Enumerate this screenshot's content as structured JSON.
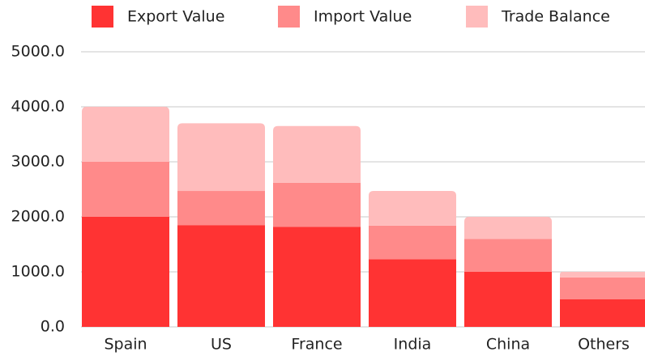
{
  "chart_data": {
    "type": "stacked_bar",
    "categories": [
      "Spain",
      "US",
      "France",
      "India",
      "China",
      "Others"
    ],
    "series": [
      {
        "name": "Export Value",
        "color": "#ff3333",
        "values": [
          2000,
          1850,
          1820,
          1230,
          1000,
          500
        ]
      },
      {
        "name": "Import Value",
        "color": "#ff8a8a",
        "values": [
          1000,
          620,
          800,
          610,
          600,
          400
        ]
      },
      {
        "name": "Trade Balance",
        "color": "#ffbcbc",
        "values": [
          1000,
          1230,
          1030,
          630,
          400,
          100
        ]
      }
    ],
    "ylim": [
      0,
      5000
    ],
    "yticks": [
      {
        "value": 0,
        "label": "0.0"
      },
      {
        "value": 1000,
        "label": "1000.0"
      },
      {
        "value": 2000,
        "label": "2000.0"
      },
      {
        "value": 3000,
        "label": "3000.0"
      },
      {
        "value": 4000,
        "label": "4000.0"
      },
      {
        "value": 5000,
        "label": "5000.0"
      }
    ],
    "grid": true,
    "legend": "top"
  }
}
